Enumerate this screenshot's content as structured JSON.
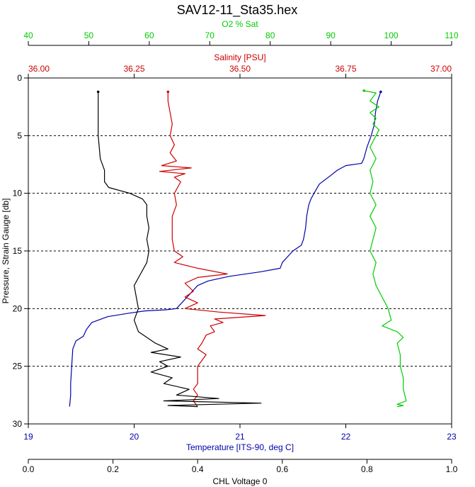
{
  "chart_data": {
    "type": "line",
    "title": "SAV12-11_Sta35.hex",
    "axes": {
      "o2": {
        "label": "O2 % Sat",
        "range": [
          40,
          110
        ],
        "ticks": [
          "40",
          "50",
          "60",
          "70",
          "80",
          "90",
          "100",
          "110"
        ],
        "color": "#00cc00"
      },
      "salinity": {
        "label": "Salinity [PSU]",
        "range": [
          36.0,
          37.0
        ],
        "ticks": [
          "36.00",
          "36.25",
          "36.50",
          "36.75",
          "37.00"
        ],
        "color": "#cc0000"
      },
      "temperature": {
        "label": "Temperature [ITS-90, deg C]",
        "range": [
          19,
          23
        ],
        "ticks": [
          "19",
          "20",
          "21",
          "22",
          "23"
        ],
        "color": "#0000aa"
      },
      "chl": {
        "label": "CHL Voltage 0",
        "range": [
          0.0,
          1.0
        ],
        "ticks": [
          "0.0",
          "0.2",
          "0.4",
          "0.6",
          "0.8",
          "1.0"
        ],
        "color": "#000000"
      },
      "pressure": {
        "label": "Pressure, Strain Gauge [db]",
        "range": [
          0,
          30
        ],
        "inverted": true,
        "ticks": [
          "0",
          "5",
          "10",
          "15",
          "20",
          "25",
          "30"
        ],
        "color": "#000000"
      }
    },
    "grid": "horizontal dashed at 5 db intervals",
    "series": [
      {
        "axis": "temperature",
        "color": "#0000aa",
        "points": [
          [
            22.33,
            1.2
          ],
          [
            22.3,
            2
          ],
          [
            22.28,
            3
          ],
          [
            22.27,
            4
          ],
          [
            22.24,
            5
          ],
          [
            22.2,
            6
          ],
          [
            22.17,
            7
          ],
          [
            22.15,
            7.4
          ],
          [
            22.0,
            7.6
          ],
          [
            21.92,
            8
          ],
          [
            21.85,
            8.5
          ],
          [
            21.75,
            9.2
          ],
          [
            21.7,
            10
          ],
          [
            21.67,
            10.5
          ],
          [
            21.65,
            11
          ],
          [
            21.63,
            12
          ],
          [
            21.62,
            13
          ],
          [
            21.6,
            14
          ],
          [
            21.58,
            14.5
          ],
          [
            21.5,
            15
          ],
          [
            21.45,
            15.5
          ],
          [
            21.4,
            16
          ],
          [
            21.38,
            16.5
          ],
          [
            21.2,
            16.8
          ],
          [
            20.9,
            17.2
          ],
          [
            20.7,
            17.6
          ],
          [
            20.6,
            18
          ],
          [
            20.55,
            18.5
          ],
          [
            20.5,
            19
          ],
          [
            20.45,
            19.5
          ],
          [
            20.4,
            20
          ],
          [
            20.3,
            20.1
          ],
          [
            20.1,
            20.2
          ],
          [
            19.95,
            20.4
          ],
          [
            19.75,
            20.7
          ],
          [
            19.6,
            21.2
          ],
          [
            19.55,
            21.8
          ],
          [
            19.52,
            22.4
          ],
          [
            19.45,
            22.8
          ],
          [
            19.42,
            23.5
          ],
          [
            19.41,
            25
          ],
          [
            19.4,
            26.5
          ],
          [
            19.4,
            27.5
          ],
          [
            19.39,
            28.5
          ]
        ]
      },
      {
        "axis": "salinity",
        "color": "#cc0000",
        "points": [
          [
            36.33,
            1.2
          ],
          [
            36.33,
            2
          ],
          [
            36.335,
            3
          ],
          [
            36.34,
            4
          ],
          [
            36.335,
            5
          ],
          [
            36.345,
            5.8
          ],
          [
            36.335,
            6.5
          ],
          [
            36.35,
            7.2
          ],
          [
            36.315,
            7.6
          ],
          [
            36.385,
            7.8
          ],
          [
            36.31,
            8.1
          ],
          [
            36.37,
            8.3
          ],
          [
            36.345,
            8.6
          ],
          [
            36.36,
            9
          ],
          [
            36.345,
            10
          ],
          [
            36.35,
            11
          ],
          [
            36.34,
            12
          ],
          [
            36.34,
            13
          ],
          [
            36.34,
            14
          ],
          [
            36.345,
            15
          ],
          [
            36.365,
            15.5
          ],
          [
            36.345,
            16
          ],
          [
            36.4,
            16.5
          ],
          [
            36.47,
            17
          ],
          [
            36.4,
            17.3
          ],
          [
            36.37,
            17.8
          ],
          [
            36.39,
            18.5
          ],
          [
            36.37,
            19
          ],
          [
            36.4,
            19.5
          ],
          [
            36.37,
            20
          ],
          [
            36.45,
            20.3
          ],
          [
            36.56,
            20.6
          ],
          [
            36.44,
            20.9
          ],
          [
            36.46,
            21.2
          ],
          [
            36.43,
            21.5
          ],
          [
            36.44,
            22
          ],
          [
            36.42,
            22.3
          ],
          [
            36.41,
            23
          ],
          [
            36.4,
            23.5
          ],
          [
            36.42,
            24
          ],
          [
            36.41,
            24.5
          ],
          [
            36.4,
            25
          ],
          [
            36.4,
            26
          ],
          [
            36.4,
            26.5
          ],
          [
            36.39,
            27
          ],
          [
            36.4,
            27.5
          ],
          [
            36.39,
            28
          ],
          [
            36.4,
            28.5
          ]
        ]
      },
      {
        "axis": "o2",
        "color": "#00cc00",
        "points": [
          [
            95.5,
            1.1
          ],
          [
            97.5,
            1.3
          ],
          [
            96.5,
            2
          ],
          [
            98,
            2.5
          ],
          [
            96.5,
            3
          ],
          [
            97.5,
            3.5
          ],
          [
            97,
            4
          ],
          [
            98,
            4.5
          ],
          [
            97.5,
            5
          ],
          [
            96.5,
            6
          ],
          [
            97.5,
            7
          ],
          [
            96.5,
            8
          ],
          [
            97,
            9
          ],
          [
            96.5,
            10
          ],
          [
            97.5,
            11
          ],
          [
            96.5,
            12
          ],
          [
            97.5,
            13
          ],
          [
            97,
            14
          ],
          [
            96.5,
            15
          ],
          [
            97.5,
            16
          ],
          [
            97,
            17
          ],
          [
            97.5,
            18
          ],
          [
            98.5,
            19
          ],
          [
            99.5,
            20
          ],
          [
            100,
            21
          ],
          [
            98.5,
            21.5
          ],
          [
            101,
            22
          ],
          [
            102,
            22.5
          ],
          [
            101,
            23
          ],
          [
            101.5,
            24
          ],
          [
            101.5,
            25
          ],
          [
            102,
            26
          ],
          [
            102,
            27
          ],
          [
            102.5,
            28
          ],
          [
            101,
            28.3
          ],
          [
            102,
            28.4
          ],
          [
            101,
            28.5
          ]
        ]
      },
      {
        "axis": "chl",
        "color": "#000000",
        "points": [
          [
            0.165,
            1.2
          ],
          [
            0.165,
            3
          ],
          [
            0.165,
            5
          ],
          [
            0.17,
            7
          ],
          [
            0.18,
            8
          ],
          [
            0.18,
            9
          ],
          [
            0.19,
            9.5
          ],
          [
            0.24,
            10
          ],
          [
            0.27,
            10.5
          ],
          [
            0.28,
            11
          ],
          [
            0.28,
            12
          ],
          [
            0.285,
            13
          ],
          [
            0.28,
            14
          ],
          [
            0.285,
            15
          ],
          [
            0.28,
            16
          ],
          [
            0.265,
            17
          ],
          [
            0.25,
            18
          ],
          [
            0.255,
            19
          ],
          [
            0.26,
            20
          ],
          [
            0.25,
            21
          ],
          [
            0.26,
            22
          ],
          [
            0.3,
            23
          ],
          [
            0.33,
            23.5
          ],
          [
            0.29,
            23.8
          ],
          [
            0.36,
            24.2
          ],
          [
            0.31,
            24.6
          ],
          [
            0.33,
            25
          ],
          [
            0.29,
            25.5
          ],
          [
            0.34,
            26
          ],
          [
            0.32,
            26.5
          ],
          [
            0.38,
            27
          ],
          [
            0.35,
            27.5
          ],
          [
            0.45,
            27.8
          ],
          [
            0.32,
            28
          ],
          [
            0.55,
            28.2
          ],
          [
            0.33,
            28.4
          ],
          [
            0.4,
            28.5
          ]
        ]
      }
    ]
  }
}
